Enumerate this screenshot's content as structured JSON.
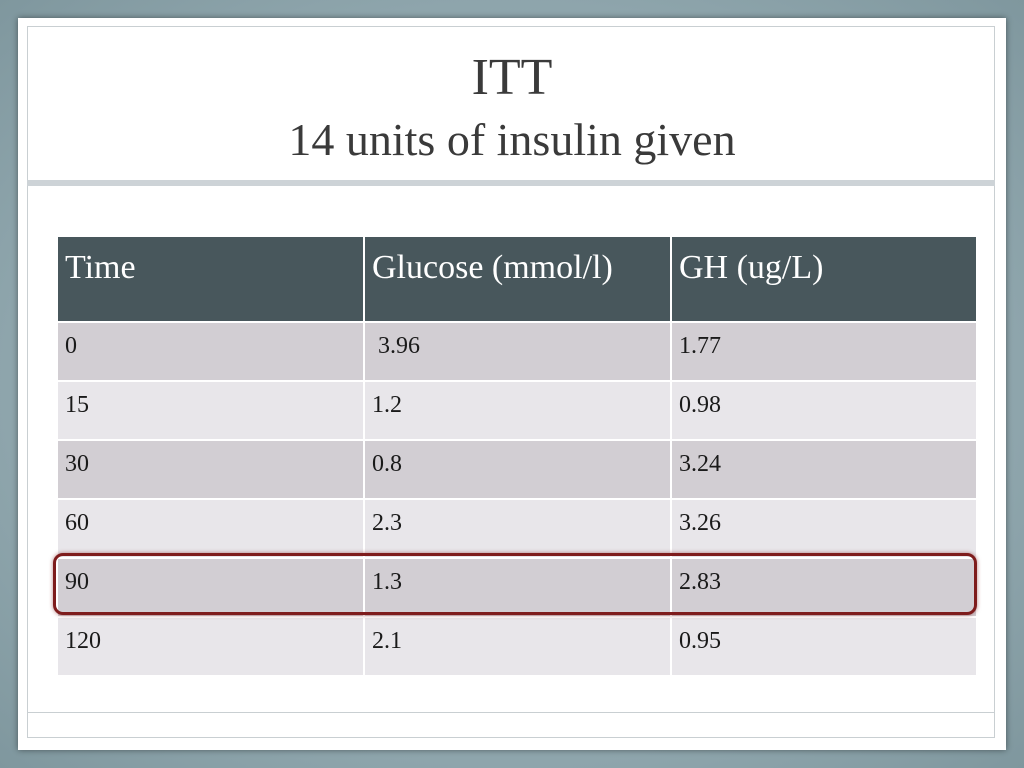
{
  "slide": {
    "title": "ITT",
    "subtitle": "14 units of insulin given"
  },
  "table": {
    "headers": [
      "Time",
      "Glucose (mmol/l)",
      "GH (ug/L)"
    ],
    "rows": [
      [
        "0",
        " 3.96",
        "1.77"
      ],
      [
        "15",
        "1.2",
        "0.98"
      ],
      [
        "30",
        "0.8",
        "3.24"
      ],
      [
        "60",
        "2.3",
        "3.26"
      ],
      [
        "90",
        "1.3",
        "2.83"
      ],
      [
        "120",
        "2.1",
        "0.95"
      ]
    ],
    "highlighted_row_index": 4
  },
  "colors": {
    "header_background": "#48575c",
    "row_odd": "#d2ced3",
    "row_even": "#e8e6ea",
    "highlight_border": "#7e1c1c"
  }
}
